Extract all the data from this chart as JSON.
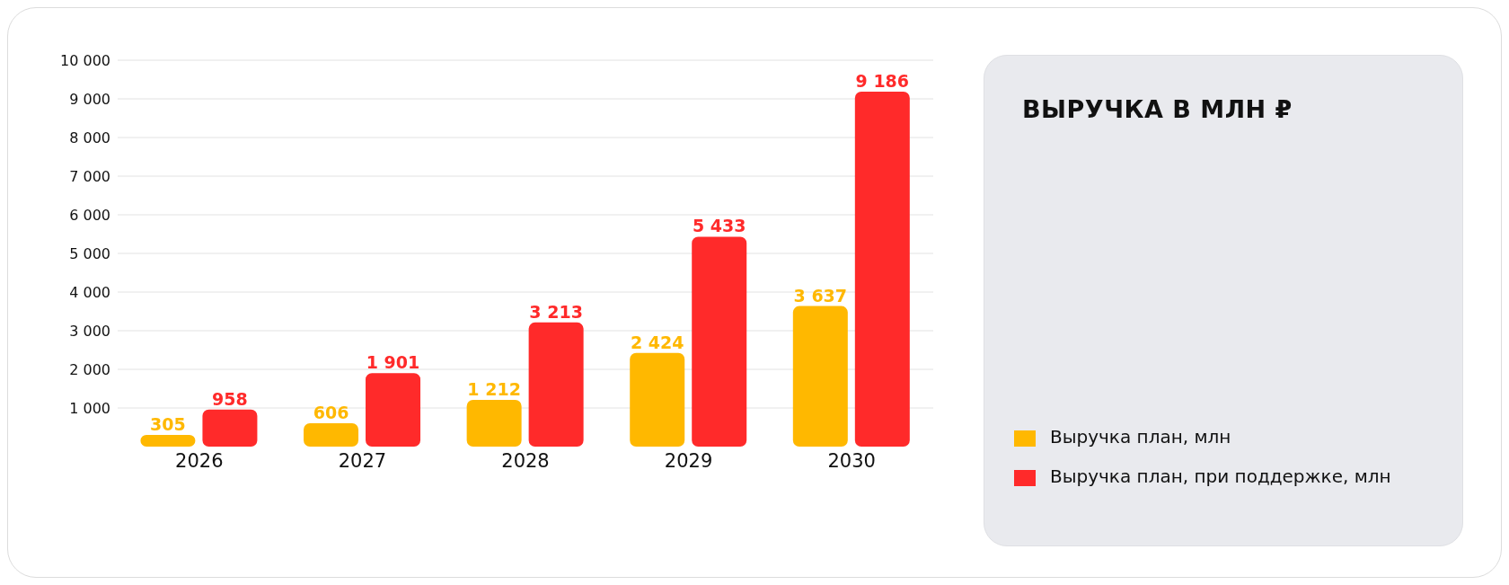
{
  "chart_data": {
    "type": "bar",
    "title": "ВЫРУЧКА В МЛН ₽",
    "categories": [
      "2026",
      "2027",
      "2028",
      "2029",
      "2030"
    ],
    "series": [
      {
        "name": "Выручка план, млн",
        "color": "#ffb800",
        "values": [
          305,
          606,
          1212,
          2424,
          3637
        ]
      },
      {
        "name": "Выручка план, при поддержке, млн",
        "color": "#ff2a2a",
        "values": [
          958,
          1901,
          3213,
          5433,
          9186
        ]
      }
    ],
    "ylim": [
      0,
      10000
    ],
    "yticks": [
      {
        "value": 1000,
        "label": "1 000"
      },
      {
        "value": 2000,
        "label": "2 000"
      },
      {
        "value": 3000,
        "label": "3 000"
      },
      {
        "value": 4000,
        "label": "4 000"
      },
      {
        "value": 5000,
        "label": "5 000"
      },
      {
        "value": 6000,
        "label": "6 000"
      },
      {
        "value": 7000,
        "label": "7 000"
      },
      {
        "value": 8000,
        "label": "8 000"
      },
      {
        "value": 9000,
        "label": "9 000"
      },
      {
        "value": 10000,
        "label": "10 000"
      }
    ],
    "grid": "y",
    "legend": "right",
    "data_labels": true
  }
}
